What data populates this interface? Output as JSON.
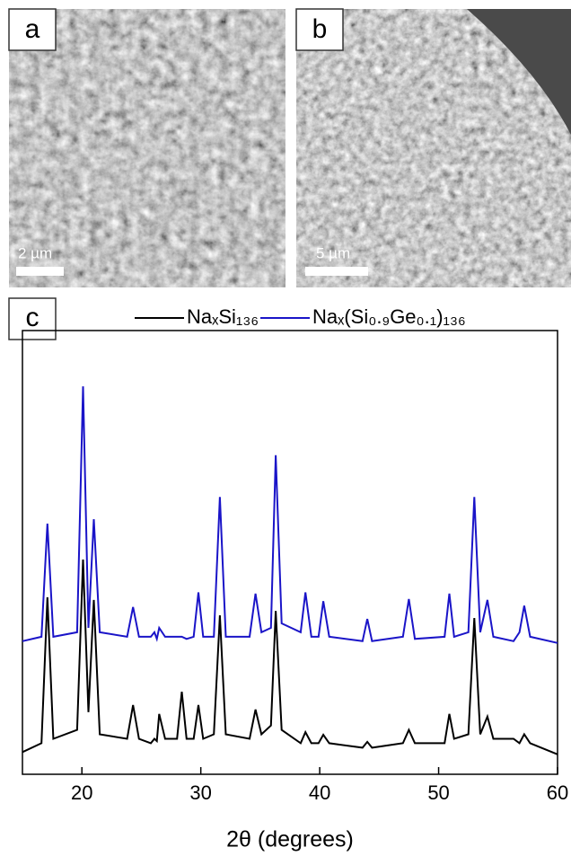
{
  "panels": [
    {
      "label": "a",
      "scale_bar": "2 µm"
    },
    {
      "label": "b",
      "scale_bar": "5 µm"
    }
  ],
  "chart_data": {
    "type": "line",
    "panel_label": "c",
    "xlabel": "2θ (degrees)",
    "x": [
      15,
      16.6,
      17.1,
      17.6,
      19.6,
      20.1,
      20.55,
      21.0,
      21.5,
      23.8,
      24.3,
      24.8,
      25.8,
      26.1,
      26.3,
      26.5,
      27.0,
      28.0,
      28.4,
      28.8,
      29.4,
      29.8,
      30.2,
      31.1,
      31.6,
      32.1,
      34.1,
      34.6,
      35.1,
      35.9,
      36.3,
      36.8,
      38.4,
      38.8,
      39.3,
      39.9,
      40.3,
      40.8,
      43.6,
      44.0,
      44.4,
      47.0,
      47.5,
      48.0,
      50.5,
      50.9,
      51.3,
      52.5,
      53.0,
      53.5,
      54.1,
      54.6,
      56.3,
      56.8,
      57.2,
      57.7,
      60
    ],
    "series": [
      {
        "name": "NaₓSi₁₃₆",
        "color": "#000000",
        "values": [
          5,
          7,
          39.9,
          8,
          10,
          48.4,
          14,
          39.3,
          9,
          8,
          15.6,
          8,
          7,
          8,
          7.5,
          13.6,
          8,
          8,
          18.6,
          8,
          8,
          15.6,
          8,
          9,
          35.8,
          9,
          8,
          14.6,
          9,
          11,
          36.8,
          10,
          7,
          9.5,
          7,
          7,
          8.9,
          7,
          6,
          7.3,
          6,
          7,
          10,
          7,
          7,
          13.6,
          8,
          9,
          35.2,
          9,
          13,
          8,
          8,
          7,
          9,
          7,
          4.5
        ]
      },
      {
        "name": "Naₓ(Si₀.₉Ge₀.₁)₁₃₆",
        "color": "#1a14c8",
        "values": [
          30,
          31,
          56.5,
          31,
          32,
          87.4,
          33,
          57.5,
          32,
          31,
          37.7,
          31,
          31,
          32,
          30.5,
          33,
          31,
          31,
          31,
          30.5,
          31,
          41,
          31,
          31,
          62.5,
          31,
          31,
          40.7,
          32,
          33,
          71.9,
          34,
          32,
          41,
          31,
          31,
          39,
          31,
          30,
          35,
          30,
          31,
          39.5,
          30.5,
          31,
          40.7,
          31,
          32,
          62.5,
          32,
          39.3,
          31,
          30,
          32,
          38,
          31,
          29.6
        ]
      }
    ],
    "xlim": [
      15,
      60
    ],
    "xticks": [
      20,
      30,
      40,
      50,
      60
    ],
    "ylim": [
      0,
      100
    ]
  }
}
